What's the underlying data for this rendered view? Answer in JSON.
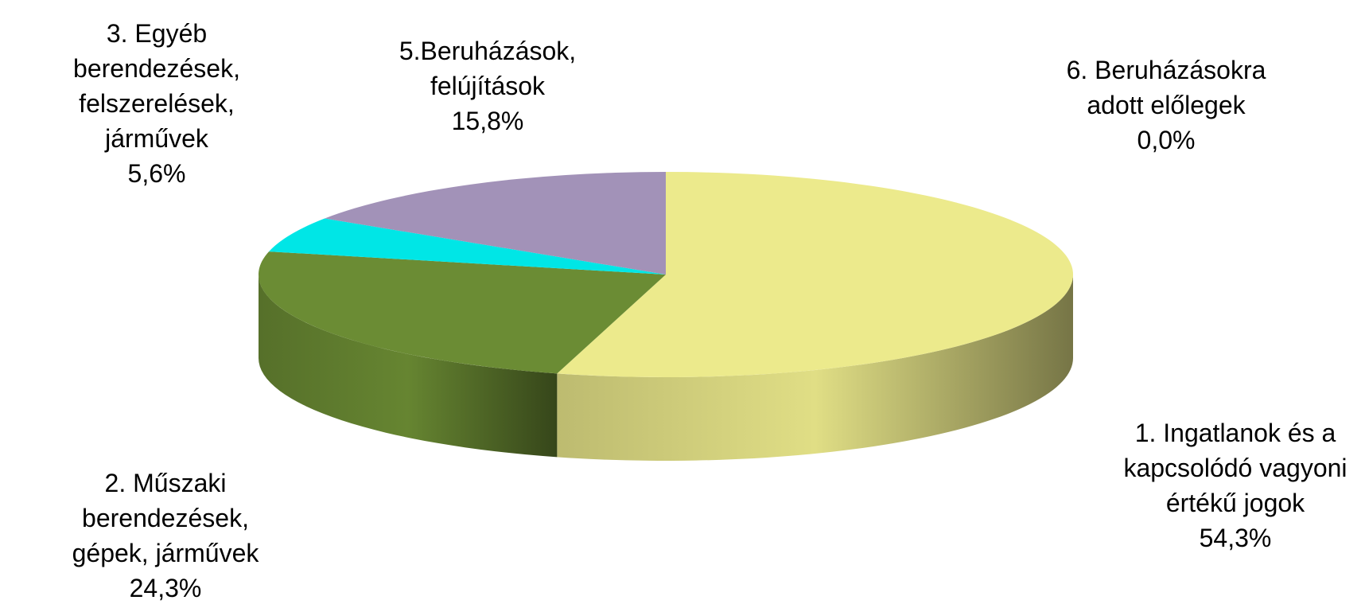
{
  "chart_data": {
    "type": "pie",
    "categories": [
      "1. Ingatlanok és a kapcsolódó vagyoni értékű jogok",
      "2. Műszaki berendezések, gépek, járművek",
      "3. Egyéb berendezések, felszerelések, járművek",
      "5.Beruházások, felújítások",
      "6. Beruházásokra adott előlegek"
    ],
    "values": [
      54.3,
      24.3,
      5.6,
      15.8,
      0.0
    ],
    "value_labels": [
      "54,3%",
      "24,3%",
      "5,6%",
      "15,8%",
      "0,0%"
    ],
    "colors": [
      "#ecea8c",
      "#6b8c34",
      "#00e6e6",
      "#a292b8",
      "#7f7fbf"
    ],
    "three_d": true
  }
}
